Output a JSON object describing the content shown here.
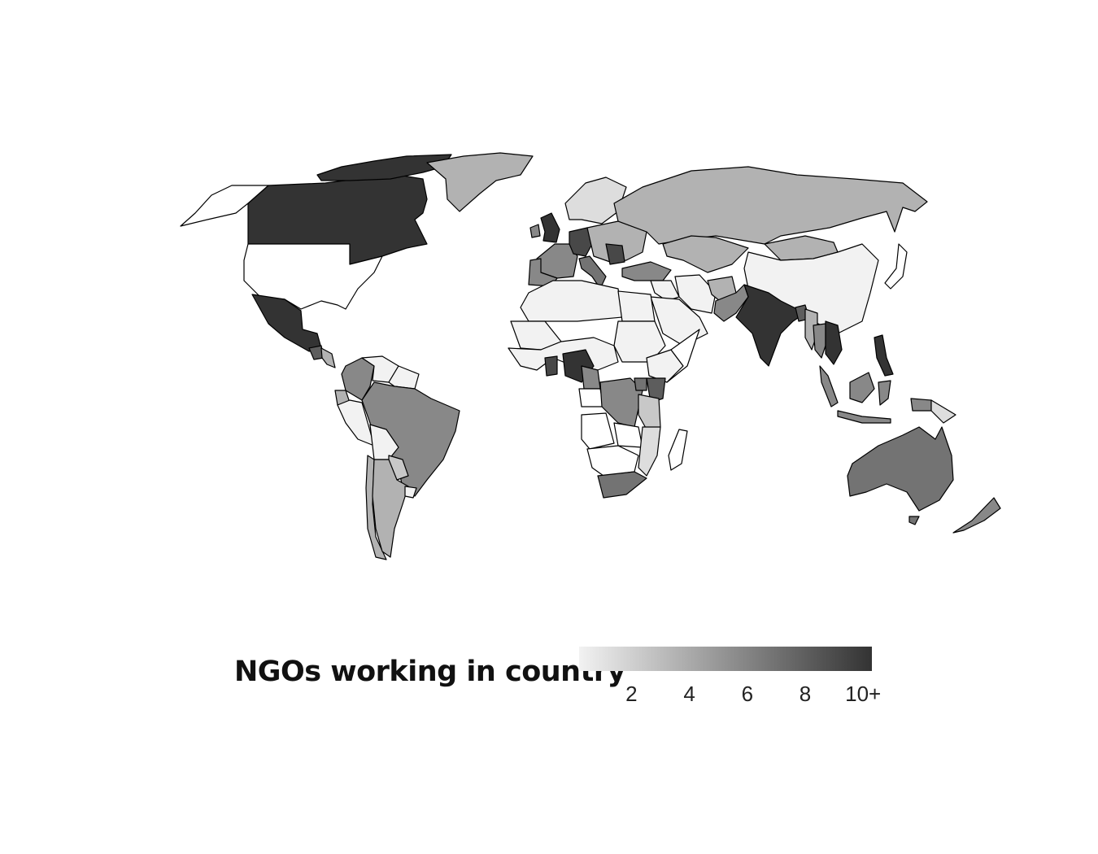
{
  "legend": {
    "title": "NGOs working in country",
    "min": 1,
    "max": 10,
    "color_low": "#f2f2f2",
    "color_high": "#333333",
    "ticks": [
      {
        "value": 2,
        "label": "2"
      },
      {
        "value": 4,
        "label": "4"
      },
      {
        "value": 6,
        "label": "6"
      },
      {
        "value": 8,
        "label": "8"
      },
      {
        "value": 10,
        "label": "10+"
      }
    ]
  },
  "countries": {
    "canada": 10,
    "usa": 0,
    "mexico": 10,
    "greenland": 4,
    "guatemala": 8,
    "central-america": 4,
    "colombia": 6,
    "venezuela": 1,
    "guyanas": 1,
    "peru": 1,
    "brazil": 6,
    "bolivia": 1,
    "paraguay": 3,
    "argentina": 4,
    "chile": 4,
    "uruguay": 1,
    "ecuador": 4,
    "uk": 10,
    "ireland": 6,
    "france": 6,
    "spain": 6,
    "germany": 9,
    "scandinavia": 2,
    "eastern-europe": 4,
    "italy": 7,
    "turkey": 6,
    "russia": 4,
    "kazakhstan": 4,
    "mongolia": 4,
    "china": 1,
    "iran": 1,
    "middle-east": 1,
    "saudi-arabia": 1,
    "afghanistan": 4,
    "pakistan": 6,
    "india": 10,
    "bangladesh": 8,
    "myanmar": 4,
    "thailand": 6,
    "mainland-se-asia": 10,
    "philippines": 10,
    "malaysia": 6,
    "indonesia": 6,
    "papua-new-guinea": 2,
    "japan": 0,
    "australia": 7,
    "new-zealand": 6,
    "north-africa": 1,
    "egypt": 1,
    "sahara-west": 1,
    "sudan": 1,
    "west-africa": 1,
    "ghana": 9,
    "nigeria": 10,
    "cameroon": 6,
    "ethiopia": 1,
    "somalia": 0,
    "drc": 6,
    "kenya": 8,
    "tanzania": 3,
    "angola": 0,
    "zambia": 0,
    "mozambique": 2,
    "madagascar": 0,
    "south-africa": 7,
    "namibia-botswana": 0,
    "uganda": 7,
    "gulf-guinea": 0
  }
}
